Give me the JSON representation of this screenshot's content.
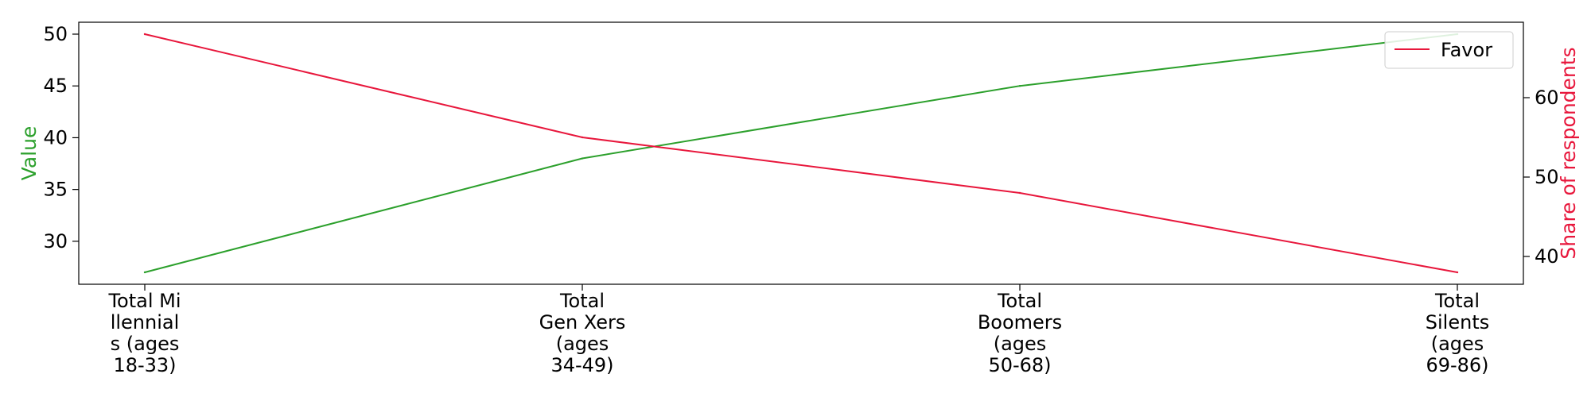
{
  "chart_data": {
    "type": "line",
    "categories": [
      [
        "Total Mi",
        "llennial",
        "s (ages",
        "18-33)"
      ],
      [
        "Total",
        "Gen Xers",
        "(ages",
        "34-49)"
      ],
      [
        "Total",
        "Boomers",
        "(ages",
        "50-68)"
      ],
      [
        "Total",
        "Silents",
        "(ages",
        "69-86)"
      ]
    ],
    "series": [
      {
        "values": [
          27,
          38,
          45,
          50
        ],
        "color": "#2ca02c",
        "axis": "left"
      },
      {
        "name": "Favor",
        "values": [
          68,
          55,
          48,
          38
        ],
        "color": "#e8173c",
        "axis": "right"
      }
    ],
    "y_left": {
      "label": "Value",
      "ylim": [
        25.85,
        51.15
      ],
      "ticks": [
        30,
        35,
        40,
        45,
        50
      ],
      "color": "#2ca02c"
    },
    "y_right": {
      "label": "Share of respondents",
      "ylim": [
        36.5,
        69.5
      ],
      "ticks": [
        40,
        50,
        60
      ],
      "color": "#e8173c"
    },
    "legend": {
      "position": "top-right",
      "entries": [
        "Favor"
      ]
    },
    "grid": false
  }
}
